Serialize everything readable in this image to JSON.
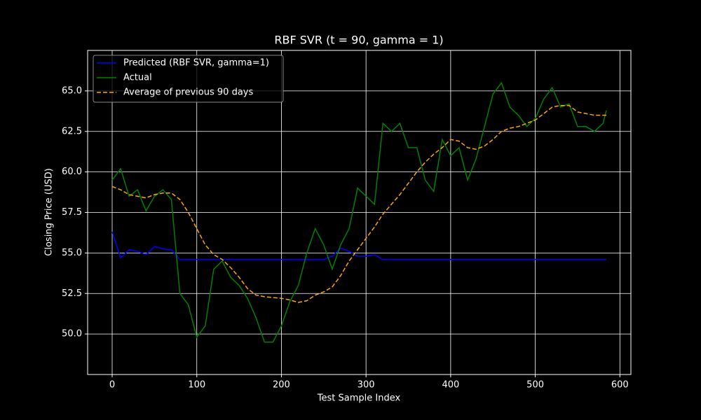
{
  "chart_data": {
    "type": "line",
    "title": "RBF SVR (t = 90, gamma = 1)",
    "x_label": "Test Sample Index",
    "y_label": "Closing Price (USD)",
    "x": [
      0,
      10,
      20,
      30,
      40,
      50,
      60,
      70,
      80,
      90,
      100,
      110,
      120,
      130,
      140,
      150,
      160,
      170,
      180,
      190,
      200,
      210,
      220,
      230,
      240,
      250,
      260,
      270,
      280,
      290,
      300,
      310,
      320,
      330,
      340,
      350,
      360,
      370,
      380,
      390,
      400,
      410,
      420,
      430,
      440,
      450,
      460,
      470,
      480,
      490,
      500,
      510,
      520,
      530,
      540,
      550,
      560,
      570,
      580,
      584
    ],
    "series": [
      {
        "name": "Predicted (RBF SVR, gamma=1)",
        "color": "#0000ff",
        "linestyle": "solid",
        "values": [
          56.3,
          54.7,
          55.2,
          55.1,
          54.9,
          55.4,
          55.25,
          55.2,
          54.6,
          54.6,
          54.6,
          54.6,
          54.6,
          54.6,
          54.6,
          54.6,
          54.6,
          54.6,
          54.6,
          54.6,
          54.6,
          54.6,
          54.6,
          54.6,
          54.6,
          54.6,
          54.8,
          55.3,
          55.1,
          54.8,
          54.8,
          54.9,
          54.6,
          54.6,
          54.6,
          54.6,
          54.6,
          54.6,
          54.6,
          54.6,
          54.6,
          54.6,
          54.6,
          54.6,
          54.6,
          54.6,
          54.6,
          54.6,
          54.6,
          54.6,
          54.6,
          54.6,
          54.6,
          54.6,
          54.6,
          54.6,
          54.6,
          54.6,
          54.6,
          54.6
        ]
      },
      {
        "name": "Actual",
        "color": "#008000",
        "linestyle": "solid",
        "values": [
          59.5,
          60.2,
          58.5,
          58.9,
          57.6,
          58.5,
          58.9,
          58.3,
          52.5,
          51.8,
          49.8,
          50.5,
          54.0,
          54.5,
          53.5,
          53.0,
          52.2,
          51.0,
          49.5,
          49.5,
          50.5,
          52.0,
          53.0,
          55.0,
          56.5,
          55.5,
          54.0,
          55.5,
          56.5,
          59.0,
          58.5,
          58.0,
          63.0,
          62.5,
          63.0,
          61.5,
          61.5,
          59.5,
          58.8,
          62.0,
          61.0,
          61.5,
          59.5,
          60.8,
          62.8,
          64.8,
          65.5,
          64.0,
          63.5,
          62.8,
          63.3,
          64.5,
          65.2,
          64.0,
          64.2,
          62.8,
          62.8,
          62.5,
          63.0,
          63.8
        ]
      },
      {
        "name": "Average of previous 90 days",
        "color": "#ffa500",
        "linestyle": "dashed",
        "values": [
          59.1,
          58.9,
          58.6,
          58.5,
          58.4,
          58.6,
          58.7,
          58.7,
          58.3,
          57.5,
          56.5,
          55.5,
          54.9,
          54.6,
          54.1,
          53.5,
          52.8,
          52.4,
          52.3,
          52.25,
          52.2,
          52.1,
          51.95,
          52.05,
          52.4,
          52.6,
          52.9,
          53.6,
          54.5,
          55.2,
          55.9,
          56.6,
          57.4,
          58.0,
          58.6,
          59.3,
          60.0,
          60.6,
          61.1,
          61.5,
          62.0,
          61.9,
          61.5,
          61.4,
          61.6,
          62.0,
          62.5,
          62.7,
          62.8,
          63.0,
          63.2,
          63.6,
          64.0,
          64.1,
          64.1,
          63.7,
          63.6,
          63.5,
          63.5,
          63.5
        ]
      }
    ],
    "xlim": [
      -29,
      613
    ],
    "ylim": [
      47.5,
      67.5
    ],
    "xticks": [
      0,
      100,
      200,
      300,
      400,
      500,
      600
    ],
    "yticks": [
      {
        "value": 50,
        "label": "50.0"
      },
      52.5,
      {
        "value": 55,
        "label": "55.0"
      },
      57.5,
      {
        "value": 60,
        "label": "60.0"
      },
      62.5,
      {
        "value": 65,
        "label": "65.0"
      }
    ],
    "grid": true,
    "legend": "upper left"
  }
}
